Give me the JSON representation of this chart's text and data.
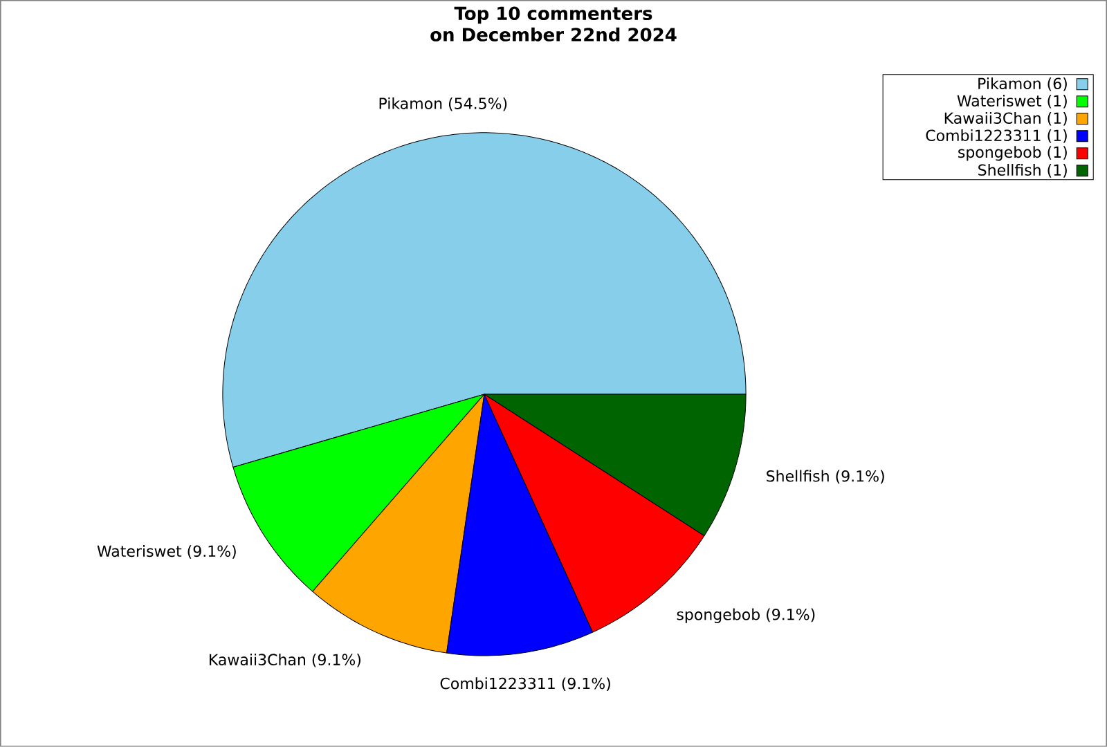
{
  "chart_data": {
    "type": "pie",
    "title": "Top 10 commenters",
    "subtitle": "on December 22nd 2024",
    "categories": [
      "Pikamon (6)",
      "Wateriswet (1)",
      "Kawaii3Chan (1)",
      "Combi1223311 (1)",
      "spongebob (1)",
      "Shellfish (1)"
    ],
    "values": [
      54.5,
      9.1,
      9.1,
      9.1,
      9.1,
      9.1
    ],
    "value_labels": [
      "Pikamon (54.5%)",
      "Wateriswet (9.1%)",
      "Kawaii3Chan (9.1%)",
      "Combi1223311 (9.1%)",
      "spongebob (9.1%)",
      "Shellfish (9.1%)"
    ],
    "colors": [
      "#87ceeb",
      "#00ff00",
      "#ffa500",
      "#0000ff",
      "#ff0000",
      "#006400"
    ],
    "legend": "top right"
  }
}
